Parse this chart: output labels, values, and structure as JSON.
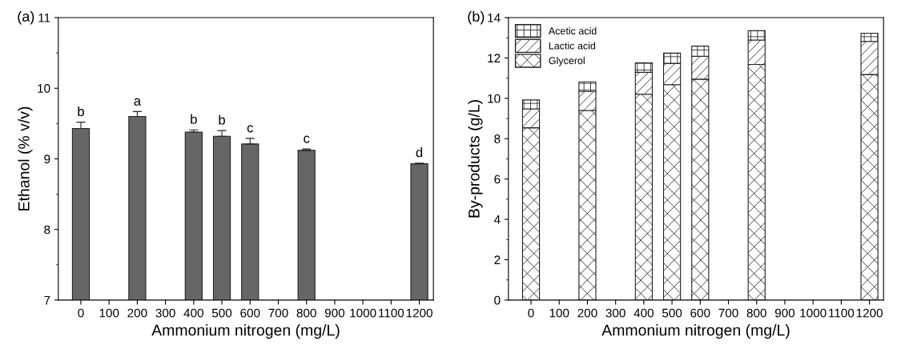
{
  "chart_data": [
    {
      "type": "bar",
      "title": "(a)",
      "xlabel": "Ammonium nitrogen (mg/L)",
      "ylabel": "Ethanol (% v/v)",
      "x": [
        0,
        200,
        400,
        500,
        600,
        800,
        1200
      ],
      "values": [
        9.43,
        9.6,
        9.38,
        9.32,
        9.21,
        9.12,
        8.93
      ],
      "errors": [
        0.09,
        0.07,
        0.03,
        0.08,
        0.08,
        0.02,
        0.01
      ],
      "color": "#666666",
      "xlim": [
        -80,
        1250
      ],
      "ylim": [
        7,
        11
      ],
      "xticks": [
        0,
        100,
        200,
        300,
        400,
        500,
        600,
        700,
        800,
        900,
        1000,
        1100,
        1200
      ],
      "yticks": [
        7,
        8,
        9,
        10,
        11
      ],
      "grid": false,
      "legend": false,
      "annotations": [
        {
          "text": "b",
          "x": 0,
          "y": 9.52
        },
        {
          "text": "a",
          "x": 200,
          "y": 9.67
        },
        {
          "text": "b",
          "x": 400,
          "y": 9.41
        },
        {
          "text": "b",
          "x": 500,
          "y": 9.4
        },
        {
          "text": "c",
          "x": 600,
          "y": 9.29
        },
        {
          "text": "c",
          "x": 800,
          "y": 9.14
        },
        {
          "text": "d",
          "x": 1200,
          "y": 8.94
        }
      ]
    },
    {
      "type": "bar",
      "title": "(b)",
      "xlabel": "Ammonium nitrogen (mg/L)",
      "ylabel": "By-products (g/L)",
      "x": [
        0,
        200,
        400,
        500,
        600,
        800,
        1200
      ],
      "stacked": true,
      "series": [
        {
          "name": "Glycerol",
          "color": "#222222",
          "values": [
            8.54,
            9.4,
            10.2,
            10.68,
            10.95,
            11.68,
            11.18
          ]
        },
        {
          "name": "Lactic acid",
          "color": "#222222",
          "values": [
            0.94,
            0.94,
            1.09,
            1.05,
            1.14,
            1.21,
            1.64
          ]
        },
        {
          "name": "Acetic acid",
          "color": "#222222",
          "values": [
            0.44,
            0.48,
            0.47,
            0.51,
            0.5,
            0.46,
            0.41
          ]
        }
      ],
      "xlim": [
        -80,
        1250
      ],
      "ylim": [
        0,
        14
      ],
      "xticks": [
        0,
        100,
        200,
        300,
        400,
        500,
        600,
        700,
        800,
        900,
        1000,
        1100,
        1200
      ],
      "yticks": [
        0,
        2,
        4,
        6,
        8,
        10,
        12,
        14
      ],
      "grid": false,
      "legend": "top left"
    }
  ]
}
